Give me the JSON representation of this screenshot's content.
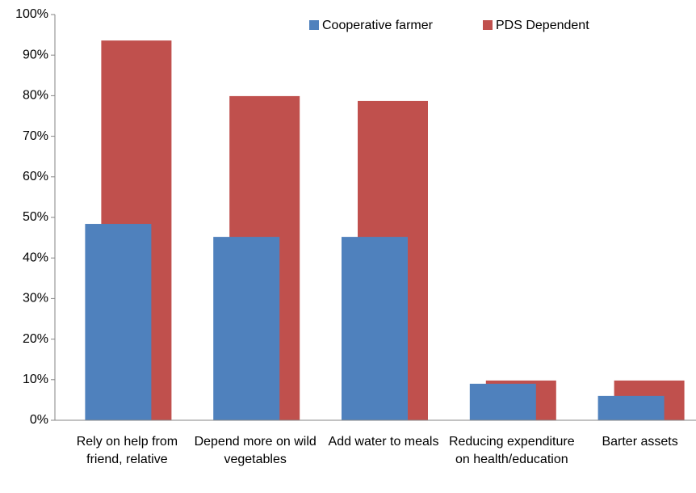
{
  "chart_data": {
    "type": "bar",
    "categories": [
      "Rely on help from friend, relative",
      "Depend more on wild vegetables",
      "Add water to meals",
      "Reducing expenditure on health/education",
      "Barter assets"
    ],
    "series": [
      {
        "name": "Cooperative farmer",
        "color": "#4f81bd",
        "values": [
          48.4,
          45.2,
          45.2,
          9.0,
          6.0
        ]
      },
      {
        "name": "PDS Dependent",
        "color": "#c0504d",
        "values": [
          93.6,
          79.9,
          78.7,
          9.8,
          9.8
        ]
      }
    ],
    "ylim": [
      0,
      100
    ],
    "yticks": [
      {
        "value": 0,
        "label": "0%"
      },
      {
        "value": 10,
        "label": "10%"
      },
      {
        "value": 20,
        "label": "20%"
      },
      {
        "value": 30,
        "label": "30%"
      },
      {
        "value": 40,
        "label": "40%"
      },
      {
        "value": 50,
        "label": "50%"
      },
      {
        "value": 60,
        "label": "60%"
      },
      {
        "value": 70,
        "label": "70%"
      },
      {
        "value": 80,
        "label": "80%"
      },
      {
        "value": 90,
        "label": "90%"
      },
      {
        "value": 100,
        "label": "100%"
      }
    ],
    "grid": false
  }
}
